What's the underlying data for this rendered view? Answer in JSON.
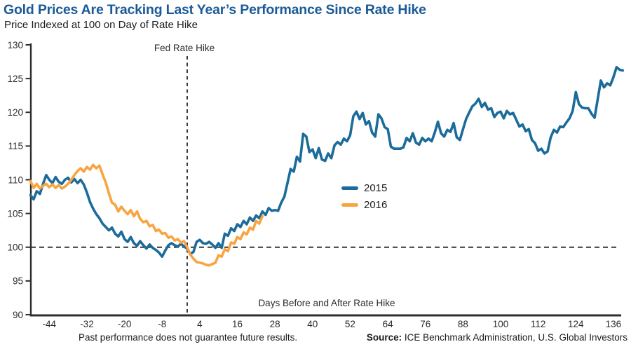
{
  "colors": {
    "title_blue": "#1A5B97",
    "axis": "#2E2E2E",
    "series_2015": "#1B6B9B",
    "series_2016": "#F8A541"
  },
  "footer": {
    "disclaimer": "Past performance does not guarantee future results.",
    "source_label": "Source:",
    "source_text": " ICE Benchmark Administration, U.S. Global Investors"
  },
  "chart_data": {
    "type": "line",
    "title": "Gold Prices Are Tracking Last Year’s Performance Since Rate Hike",
    "subtitle": "Price Indexed at 100 on Day of Rate Hike",
    "xlabel": "Days Before and After Rate Hike",
    "ylabel": "Price Indexed at 100 on Day of Rate Hike",
    "x_ticks": [
      -44,
      -32,
      -20,
      -8,
      4,
      16,
      28,
      40,
      52,
      64,
      76,
      88,
      100,
      112,
      124,
      136
    ],
    "y_ticks": [
      90,
      95,
      100,
      105,
      110,
      115,
      120,
      125,
      130
    ],
    "xlim": [
      -51,
      140
    ],
    "ylim": [
      90,
      130
    ],
    "grid": false,
    "legend_position": "center-right",
    "annotations": {
      "fed_rate_hike": "Fed Rate Hike",
      "rate_hike_day": 0,
      "baseline_value": 100
    },
    "series": [
      {
        "name": "2015",
        "color": "#1B6B9B",
        "points": [
          [
            -50,
            107.7
          ],
          [
            -49,
            107.1
          ],
          [
            -48,
            108.3
          ],
          [
            -47,
            107.9
          ],
          [
            -46,
            109.4
          ],
          [
            -45,
            110.7
          ],
          [
            -44,
            110.0
          ],
          [
            -43,
            109.5
          ],
          [
            -42,
            110.4
          ],
          [
            -41,
            109.7
          ],
          [
            -40,
            109.4
          ],
          [
            -39,
            110.0
          ],
          [
            -38,
            110.3
          ],
          [
            -37,
            109.6
          ],
          [
            -36,
            110.1
          ],
          [
            -35,
            109.5
          ],
          [
            -34,
            110.0
          ],
          [
            -33,
            109.3
          ],
          [
            -32,
            108.1
          ],
          [
            -31,
            106.7
          ],
          [
            -30,
            105.7
          ],
          [
            -29,
            104.9
          ],
          [
            -28,
            104.3
          ],
          [
            -27,
            103.5
          ],
          [
            -26,
            103.0
          ],
          [
            -25,
            102.5
          ],
          [
            -24,
            102.9
          ],
          [
            -23,
            102.0
          ],
          [
            -22,
            101.6
          ],
          [
            -21,
            102.3
          ],
          [
            -20,
            101.2
          ],
          [
            -19,
            100.8
          ],
          [
            -18,
            101.5
          ],
          [
            -17,
            100.6
          ],
          [
            -16,
            100.2
          ],
          [
            -15,
            100.9
          ],
          [
            -14,
            100.3
          ],
          [
            -13,
            99.8
          ],
          [
            -12,
            100.4
          ],
          [
            -11,
            99.9
          ],
          [
            -10,
            99.6
          ],
          [
            -9,
            99.2
          ],
          [
            -8,
            98.6
          ],
          [
            -7,
            99.5
          ],
          [
            -6,
            100.3
          ],
          [
            -5,
            100.6
          ],
          [
            -4,
            100.3
          ],
          [
            -3,
            100.1
          ],
          [
            -2,
            100.5
          ],
          [
            -1,
            100.1
          ],
          [
            0,
            99.8
          ],
          [
            1,
            99.0
          ],
          [
            2,
            99.3
          ],
          [
            3,
            100.8
          ],
          [
            4,
            101.1
          ],
          [
            5,
            100.6
          ],
          [
            6,
            100.5
          ],
          [
            7,
            100.8
          ],
          [
            8,
            100.4
          ],
          [
            9,
            99.9
          ],
          [
            10,
            100.6
          ],
          [
            11,
            99.9
          ],
          [
            12,
            102.0
          ],
          [
            13,
            101.7
          ],
          [
            14,
            102.8
          ],
          [
            15,
            102.4
          ],
          [
            16,
            103.4
          ],
          [
            17,
            103.0
          ],
          [
            18,
            103.9
          ],
          [
            19,
            103.4
          ],
          [
            20,
            104.4
          ],
          [
            21,
            103.9
          ],
          [
            22,
            104.7
          ],
          [
            23,
            104.3
          ],
          [
            24,
            105.3
          ],
          [
            25,
            104.8
          ],
          [
            26,
            105.8
          ],
          [
            27,
            105.4
          ],
          [
            28,
            105.5
          ],
          [
            29,
            105.4
          ],
          [
            30,
            106.6
          ],
          [
            31,
            107.5
          ],
          [
            32,
            109.5
          ],
          [
            33,
            111.6
          ],
          [
            34,
            111.2
          ],
          [
            35,
            113.4
          ],
          [
            36,
            112.7
          ],
          [
            37,
            116.8
          ],
          [
            38,
            116.4
          ],
          [
            39,
            114.1
          ],
          [
            40,
            114.5
          ],
          [
            41,
            113.2
          ],
          [
            42,
            114.7
          ],
          [
            43,
            113.0
          ],
          [
            44,
            112.8
          ],
          [
            45,
            113.9
          ],
          [
            46,
            113.2
          ],
          [
            47,
            115.1
          ],
          [
            48,
            115.6
          ],
          [
            49,
            115.2
          ],
          [
            50,
            116.1
          ],
          [
            51,
            115.7
          ],
          [
            52,
            116.6
          ],
          [
            53,
            119.4
          ],
          [
            54,
            120.1
          ],
          [
            55,
            119.0
          ],
          [
            56,
            119.9
          ],
          [
            57,
            118.2
          ],
          [
            58,
            118.7
          ],
          [
            59,
            117.0
          ],
          [
            60,
            116.4
          ],
          [
            61,
            119.7
          ],
          [
            62,
            119.1
          ],
          [
            63,
            117.8
          ],
          [
            64,
            117.5
          ],
          [
            65,
            114.9
          ],
          [
            66,
            114.6
          ],
          [
            67,
            114.6
          ],
          [
            68,
            114.6
          ],
          [
            69,
            114.8
          ],
          [
            70,
            116.2
          ],
          [
            71,
            115.7
          ],
          [
            72,
            116.9
          ],
          [
            73,
            115.5
          ],
          [
            74,
            115.2
          ],
          [
            75,
            116.2
          ],
          [
            76,
            115.7
          ],
          [
            77,
            116.1
          ],
          [
            78,
            115.7
          ],
          [
            79,
            117.0
          ],
          [
            80,
            118.6
          ],
          [
            81,
            116.9
          ],
          [
            82,
            116.4
          ],
          [
            83,
            117.4
          ],
          [
            84,
            117.1
          ],
          [
            85,
            118.4
          ],
          [
            86,
            116.3
          ],
          [
            87,
            115.9
          ],
          [
            88,
            117.5
          ],
          [
            89,
            119.0
          ],
          [
            90,
            120.0
          ],
          [
            91,
            120.9
          ],
          [
            92,
            121.3
          ],
          [
            93,
            122.0
          ],
          [
            94,
            120.8
          ],
          [
            95,
            121.4
          ],
          [
            96,
            120.4
          ],
          [
            97,
            120.6
          ],
          [
            98,
            119.3
          ],
          [
            99,
            119.9
          ],
          [
            100,
            120.1
          ],
          [
            101,
            119.1
          ],
          [
            102,
            120.2
          ],
          [
            103,
            119.7
          ],
          [
            104,
            119.9
          ],
          [
            105,
            118.9
          ],
          [
            106,
            117.9
          ],
          [
            107,
            118.2
          ],
          [
            108,
            117.2
          ],
          [
            109,
            117.5
          ],
          [
            110,
            115.9
          ],
          [
            111,
            115.4
          ],
          [
            112,
            114.3
          ],
          [
            113,
            114.6
          ],
          [
            114,
            113.9
          ],
          [
            115,
            114.2
          ],
          [
            116,
            116.3
          ],
          [
            117,
            117.4
          ],
          [
            118,
            117.0
          ],
          [
            119,
            117.9
          ],
          [
            120,
            117.8
          ],
          [
            121,
            118.5
          ],
          [
            122,
            119.1
          ],
          [
            123,
            120.2
          ],
          [
            124,
            123.0
          ],
          [
            125,
            121.2
          ],
          [
            126,
            120.7
          ],
          [
            127,
            120.6
          ],
          [
            128,
            120.6
          ],
          [
            129,
            119.8
          ],
          [
            130,
            119.2
          ],
          [
            131,
            122.0
          ],
          [
            132,
            124.7
          ],
          [
            133,
            123.7
          ],
          [
            134,
            124.3
          ],
          [
            135,
            124.0
          ],
          [
            136,
            125.2
          ],
          [
            137,
            126.7
          ],
          [
            138,
            126.3
          ],
          [
            139,
            126.2
          ]
        ]
      },
      {
        "name": "2016",
        "color": "#F8A541",
        "points": [
          [
            -50,
            109.8
          ],
          [
            -49,
            108.8
          ],
          [
            -48,
            109.4
          ],
          [
            -47,
            108.7
          ],
          [
            -46,
            109.1
          ],
          [
            -45,
            109.4
          ],
          [
            -44,
            108.9
          ],
          [
            -43,
            109.3
          ],
          [
            -42,
            108.8
          ],
          [
            -41,
            109.2
          ],
          [
            -40,
            108.7
          ],
          [
            -39,
            109.0
          ],
          [
            -38,
            109.4
          ],
          [
            -37,
            110.0
          ],
          [
            -36,
            110.7
          ],
          [
            -35,
            111.3
          ],
          [
            -34,
            111.7
          ],
          [
            -33,
            111.2
          ],
          [
            -32,
            111.9
          ],
          [
            -31,
            111.5
          ],
          [
            -30,
            112.2
          ],
          [
            -29,
            111.7
          ],
          [
            -28,
            112.1
          ],
          [
            -27,
            110.8
          ],
          [
            -26,
            109.6
          ],
          [
            -25,
            108.0
          ],
          [
            -24,
            106.6
          ],
          [
            -23,
            106.3
          ],
          [
            -22,
            105.3
          ],
          [
            -21,
            106.0
          ],
          [
            -20,
            105.4
          ],
          [
            -19,
            104.9
          ],
          [
            -18,
            105.5
          ],
          [
            -17,
            104.6
          ],
          [
            -16,
            105.3
          ],
          [
            -15,
            104.2
          ],
          [
            -14,
            103.7
          ],
          [
            -13,
            103.9
          ],
          [
            -12,
            103.1
          ],
          [
            -11,
            103.3
          ],
          [
            -10,
            102.4
          ],
          [
            -9,
            102.6
          ],
          [
            -8,
            102.0
          ],
          [
            -7,
            102.1
          ],
          [
            -6,
            101.4
          ],
          [
            -5,
            101.6
          ],
          [
            -4,
            101.0
          ],
          [
            -3,
            101.2
          ],
          [
            -2,
            100.7
          ],
          [
            -1,
            100.9
          ],
          [
            0,
            100.0
          ],
          [
            1,
            98.9
          ],
          [
            2,
            98.3
          ],
          [
            3,
            97.8
          ],
          [
            4,
            97.7
          ],
          [
            5,
            97.6
          ],
          [
            6,
            97.4
          ],
          [
            7,
            97.3
          ],
          [
            8,
            97.5
          ],
          [
            9,
            97.7
          ],
          [
            10,
            98.8
          ],
          [
            11,
            98.6
          ],
          [
            12,
            99.7
          ],
          [
            13,
            99.4
          ],
          [
            14,
            100.7
          ],
          [
            15,
            100.5
          ],
          [
            16,
            101.5
          ],
          [
            17,
            101.2
          ],
          [
            18,
            102.2
          ],
          [
            19,
            101.9
          ],
          [
            20,
            102.9
          ],
          [
            21,
            102.6
          ],
          [
            22,
            103.9
          ],
          [
            23,
            103.5
          ],
          [
            24,
            104.6
          ]
        ]
      }
    ]
  }
}
